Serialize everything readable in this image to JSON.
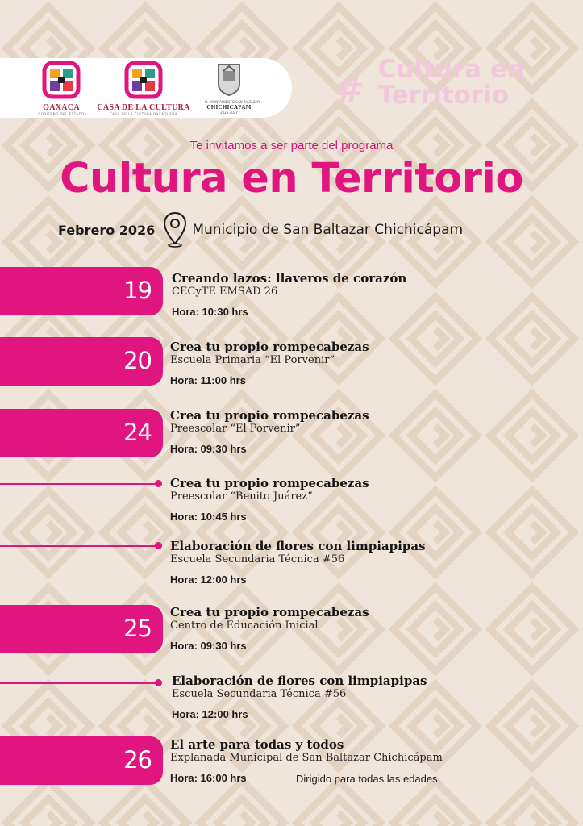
{
  "logos": [
    {
      "caption": "OAXACA",
      "subcaption": "GOBIERNO DEL ESTADO"
    },
    {
      "caption": "CASA DE LA CULTURA",
      "subcaption": "CASA DE LA CULTURA OAXAQUEÑA"
    },
    {
      "caption_top": "H. AYUNTAMIENTO SAN BALTAZAR",
      "caption": "CHICHICAPAM",
      "subcaption": "2025-2027"
    }
  ],
  "corner_tag": {
    "hash": "#",
    "line1": "Cultura en",
    "line2": "Territorio"
  },
  "intro": "Te invitamos a ser parte del programa",
  "title": "Cultura en Territorio",
  "date_label": "Febrero 2026",
  "place": "Municipio de San Baltazar Chichicápam",
  "days": [
    "19",
    "20",
    "24",
    "25",
    "26"
  ],
  "events": [
    {
      "title": "Creando lazos: llaveros de corazón",
      "venue": "CECyTE EMSAD 26",
      "time": "Hora: 10:30 hrs"
    },
    {
      "title": "Crea tu propio rompecabezas",
      "venue": "Escuela Primaria “El Porvenir”",
      "time": "Hora: 11:00 hrs"
    },
    {
      "title": "Crea tu propio rompecabezas",
      "venue": "Preescolar “El Porvenir”",
      "time": "Hora: 09:30 hrs"
    },
    {
      "title": "Crea tu propio rompecabezas",
      "venue": "Preescolar “Benito Juárez”",
      "time": "Hora: 10:45 hrs"
    },
    {
      "title": "Elaboración de flores con limpiapipas",
      "venue": "Escuela Secundaria Técnica #56",
      "time": "Hora: 12:00 hrs"
    },
    {
      "title": "Crea tu propio rompecabezas",
      "venue": "Centro de Educación Inicial",
      "time": "Hora: 09:30 hrs"
    },
    {
      "title": "Elaboración de flores con limpiapipas",
      "venue": "Escuela Secundaria Técnica #56",
      "time": "Hora: 12:00 hrs"
    },
    {
      "title": "El arte para todas y todos",
      "venue": "Explanada Municipal de San Baltazar Chichicápam",
      "time": "Hora: 16:00 hrs"
    }
  ],
  "final_note": "Dirigido para todas las edades",
  "colors": {
    "accent": "#e0157f",
    "background": "#efe5da",
    "pattern": "#e4d5c6"
  }
}
